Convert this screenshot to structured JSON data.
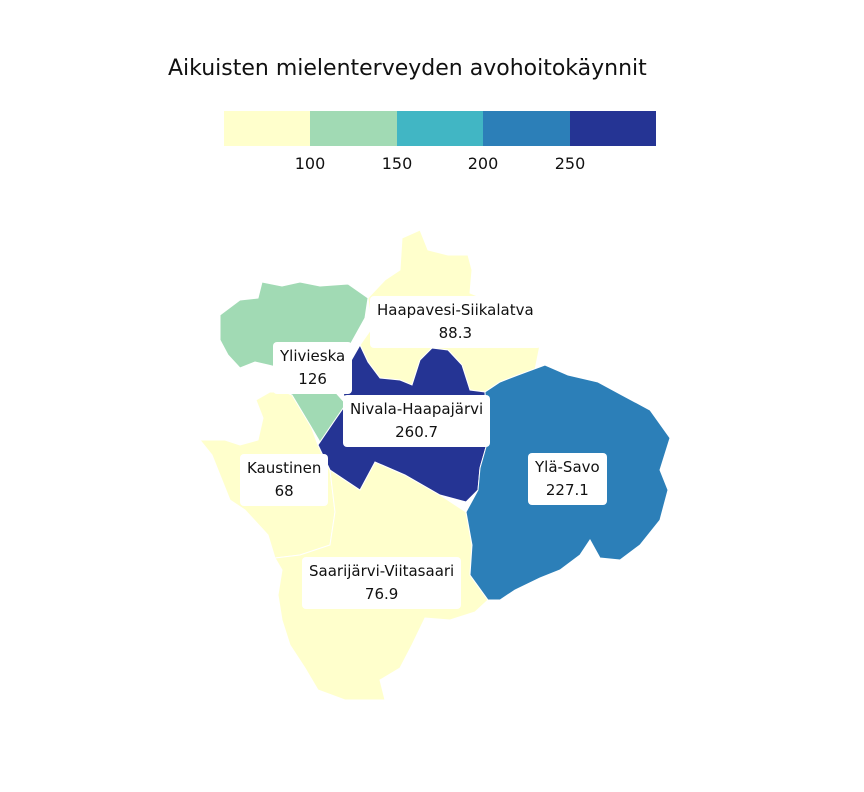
{
  "title": "Aikuisten mielenterveyden avohoitokäynnit",
  "legend": {
    "colors": [
      "#ffffcc",
      "#a1dab4",
      "#41b6c4",
      "#2c7fb8",
      "#253494"
    ],
    "ticks": [
      "100",
      "150",
      "200",
      "250"
    ]
  },
  "regions": [
    {
      "name": "Haapavesi-Siikalatva",
      "value": "88.3",
      "color": "#ffffcc"
    },
    {
      "name": "Ylivieska",
      "value": "126",
      "color": "#a1dab4"
    },
    {
      "name": "Nivala-Haapajärvi",
      "value": "260.7",
      "color": "#253494"
    },
    {
      "name": "Kaustinen",
      "value": "68",
      "color": "#ffffcc"
    },
    {
      "name": "Ylä-Savo",
      "value": "227.1",
      "color": "#2c7fb8"
    },
    {
      "name": "Saarijärvi-Viitasaari",
      "value": "76.9",
      "color": "#ffffcc"
    }
  ]
}
